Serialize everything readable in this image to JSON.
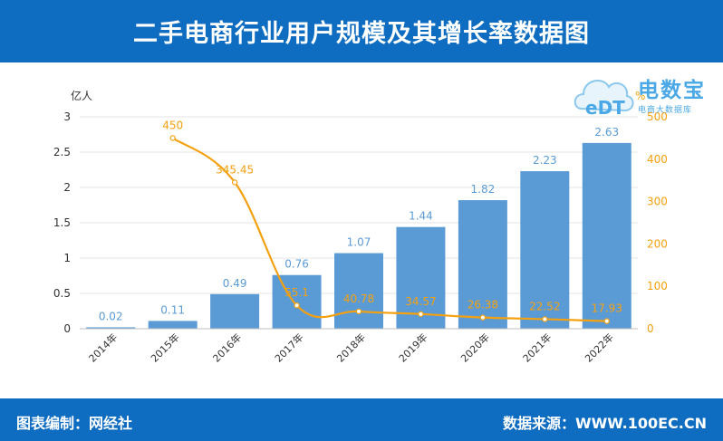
{
  "header": {
    "title": "二手电商行业用户规模及其增长率数据图"
  },
  "footer": {
    "left_text": "图表编制：网经社",
    "right_text": "数据来源：WWW.100EC.CN"
  },
  "logo": {
    "mark": "eDT",
    "brand": "电数宝",
    "sub": "电商大数据库"
  },
  "colors": {
    "bar": "#5b9bd5",
    "line": "#f5a00f",
    "bar_label": "#5b9bd5",
    "line_label": "#f5a00f",
    "header_bg": "#0e6cc1"
  },
  "chart_data": {
    "type": "bar",
    "categories": [
      "2014年",
      "2015年",
      "2016年",
      "2017年",
      "2018年",
      "2019年",
      "2020年",
      "2021年",
      "2022年"
    ],
    "series": [
      {
        "values": [
          0.02,
          0.11,
          0.49,
          0.76,
          1.07,
          1.44,
          1.82,
          2.23,
          2.63
        ],
        "axis": "left",
        "kind": "bar"
      },
      {
        "values": [
          null,
          450,
          345.45,
          55.1,
          40.78,
          34.57,
          26.38,
          22.52,
          17.93
        ],
        "axis": "right",
        "kind": "line"
      }
    ],
    "ylabel": "亿人",
    "y2label": "%",
    "ylim": [
      0,
      3
    ],
    "y2lim": [
      0,
      500
    ],
    "yticks": [
      "0",
      "0.5",
      "1",
      "1.5",
      "2",
      "2.5",
      "3"
    ],
    "y2ticks": [
      "0",
      "100",
      "200",
      "300",
      "400",
      "500"
    ],
    "grid": true
  }
}
